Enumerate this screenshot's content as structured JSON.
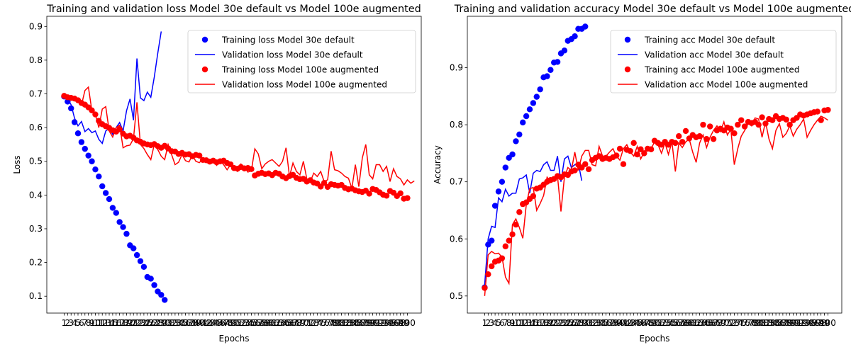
{
  "chart_data": [
    {
      "type": "line",
      "title": "Training and validation loss Model 30e default vs Model 100e augmented",
      "xlabel": "Epochs",
      "ylabel": "Loss",
      "xlim": [
        -4,
        104
      ],
      "ylim": [
        0.05,
        0.93
      ],
      "yticks": [
        0.1,
        0.2,
        0.3,
        0.4,
        0.5,
        0.6,
        0.7,
        0.8,
        0.9
      ],
      "xticks_max": 100,
      "legend_position": "top-right",
      "grid": false,
      "series": [
        {
          "name": "Training loss Model 30e default",
          "style": "markers",
          "color": "#0000ff",
          "values": [
            0.692,
            0.677,
            0.657,
            0.616,
            0.583,
            0.557,
            0.537,
            0.517,
            0.5,
            0.476,
            0.455,
            0.426,
            0.406,
            0.388,
            0.362,
            0.347,
            0.32,
            0.305,
            0.285,
            0.251,
            0.242,
            0.222,
            0.204,
            0.187,
            0.157,
            0.152,
            0.133,
            0.114,
            0.104,
            0.089
          ]
        },
        {
          "name": "Validation loss Model 30e default",
          "style": "line",
          "color": "#0000ff",
          "values": [
            0.69,
            0.685,
            0.668,
            0.628,
            0.605,
            0.618,
            0.588,
            0.597,
            0.585,
            0.59,
            0.565,
            0.553,
            0.59,
            0.598,
            0.58,
            0.6,
            0.615,
            0.59,
            0.65,
            0.685,
            0.622,
            0.805,
            0.688,
            0.68,
            0.705,
            0.69,
            0.75,
            0.82,
            0.885
          ]
        },
        {
          "name": "Training loss Model 100e augmented",
          "style": "markers",
          "color": "#ff0000",
          "values": [
            0.694,
            0.69,
            0.688,
            0.686,
            0.681,
            0.673,
            0.668,
            0.66,
            0.651,
            0.639,
            0.62,
            0.61,
            0.604,
            0.599,
            0.592,
            0.588,
            0.595,
            0.582,
            0.574,
            0.576,
            0.57,
            0.562,
            0.558,
            0.553,
            0.55,
            0.548,
            0.551,
            0.545,
            0.54,
            0.546,
            0.538,
            0.53,
            0.529,
            0.522,
            0.525,
            0.52,
            0.521,
            0.515,
            0.519,
            0.517,
            0.504,
            0.503,
            0.499,
            0.502,
            0.497,
            0.5,
            0.502,
            0.495,
            0.491,
            0.48,
            0.478,
            0.483,
            0.479,
            0.48,
            0.477,
            0.458,
            0.463,
            0.466,
            0.462,
            0.464,
            0.459,
            0.466,
            0.463,
            0.455,
            0.45,
            0.456,
            0.46,
            0.451,
            0.447,
            0.448,
            0.44,
            0.444,
            0.437,
            0.434,
            0.425,
            0.436,
            0.424,
            0.432,
            0.43,
            0.428,
            0.43,
            0.421,
            0.417,
            0.419,
            0.414,
            0.411,
            0.409,
            0.413,
            0.404,
            0.418,
            0.415,
            0.408,
            0.401,
            0.398,
            0.412,
            0.407,
            0.397,
            0.405,
            0.389,
            0.391
          ]
        },
        {
          "name": "Validation loss Model 100e augmented",
          "style": "line",
          "color": "#ff0000",
          "values": [
            0.69,
            0.691,
            0.686,
            0.683,
            0.681,
            0.667,
            0.71,
            0.72,
            0.65,
            0.64,
            0.6,
            0.655,
            0.662,
            0.59,
            0.572,
            0.6,
            0.607,
            0.54,
            0.546,
            0.548,
            0.567,
            0.675,
            0.55,
            0.538,
            0.52,
            0.505,
            0.55,
            0.535,
            0.515,
            0.505,
            0.55,
            0.52,
            0.49,
            0.497,
            0.52,
            0.502,
            0.498,
            0.518,
            0.5,
            0.496,
            0.507,
            0.51,
            0.495,
            0.5,
            0.488,
            0.502,
            0.49,
            0.475,
            0.49,
            0.48,
            0.47,
            0.492,
            0.482,
            0.468,
            0.472,
            0.537,
            0.522,
            0.478,
            0.492,
            0.5,
            0.505,
            0.495,
            0.485,
            0.5,
            0.54,
            0.455,
            0.495,
            0.47,
            0.46,
            0.5,
            0.448,
            0.44,
            0.465,
            0.455,
            0.47,
            0.44,
            0.445,
            0.53,
            0.475,
            0.472,
            0.465,
            0.455,
            0.45,
            0.42,
            0.49,
            0.425,
            0.51,
            0.55,
            0.46,
            0.448,
            0.49,
            0.49,
            0.47,
            0.485,
            0.44,
            0.478,
            0.455,
            0.448,
            0.43,
            0.445,
            0.435,
            0.442
          ]
        }
      ]
    },
    {
      "type": "line",
      "title": "Training and validation accuracy Model 30e default vs Model 100e augmented",
      "xlabel": "Epochs",
      "ylabel": "Accuracy",
      "xlim": [
        -4,
        104
      ],
      "ylim": [
        0.47,
        0.99
      ],
      "yticks": [
        0.5,
        0.6,
        0.7,
        0.8,
        0.9
      ],
      "xticks_max": 100,
      "legend_position": "top-right",
      "grid": false,
      "series": [
        {
          "name": "Training acc Model 30e default",
          "style": "markers",
          "color": "#0000ff",
          "values": [
            0.515,
            0.59,
            0.597,
            0.658,
            0.683,
            0.7,
            0.725,
            0.742,
            0.748,
            0.771,
            0.783,
            0.804,
            0.815,
            0.827,
            0.838,
            0.849,
            0.862,
            0.883,
            0.885,
            0.896,
            0.909,
            0.91,
            0.925,
            0.93,
            0.947,
            0.95,
            0.955,
            0.968,
            0.968,
            0.972
          ]
        },
        {
          "name": "Validation acc Model 30e default",
          "style": "line",
          "color": "#0000ff",
          "values": [
            0.52,
            0.6,
            0.622,
            0.62,
            0.672,
            0.665,
            0.687,
            0.675,
            0.68,
            0.68,
            0.705,
            0.707,
            0.712,
            0.68,
            0.715,
            0.72,
            0.718,
            0.73,
            0.735,
            0.72,
            0.72,
            0.745,
            0.7,
            0.74,
            0.745,
            0.725,
            0.73,
            0.733,
            0.702
          ]
        },
        {
          "name": "Training acc Model 100e augmented",
          "style": "markers",
          "color": "#ff0000",
          "values": [
            0.514,
            0.538,
            0.552,
            0.56,
            0.562,
            0.566,
            0.587,
            0.597,
            0.608,
            0.625,
            0.647,
            0.661,
            0.664,
            0.67,
            0.675,
            0.688,
            0.69,
            0.695,
            0.7,
            0.703,
            0.705,
            0.71,
            0.708,
            0.713,
            0.712,
            0.718,
            0.72,
            0.73,
            0.725,
            0.731,
            0.722,
            0.738,
            0.742,
            0.745,
            0.74,
            0.742,
            0.74,
            0.743,
            0.746,
            0.758,
            0.731,
            0.756,
            0.754,
            0.768,
            0.748,
            0.757,
            0.75,
            0.758,
            0.757,
            0.772,
            0.768,
            0.765,
            0.77,
            0.765,
            0.77,
            0.768,
            0.78,
            0.77,
            0.789,
            0.776,
            0.782,
            0.778,
            0.78,
            0.8,
            0.775,
            0.797,
            0.775,
            0.79,
            0.793,
            0.79,
            0.795,
            0.793,
            0.785,
            0.8,
            0.808,
            0.797,
            0.805,
            0.803,
            0.805,
            0.8,
            0.813,
            0.802,
            0.81,
            0.808,
            0.815,
            0.81,
            0.812,
            0.809,
            0.8,
            0.808,
            0.812,
            0.818,
            0.816,
            0.818,
            0.82,
            0.822,
            0.823,
            0.808,
            0.825,
            0.826
          ]
        },
        {
          "name": "Validation acc Model 100e augmented",
          "style": "line",
          "color": "#ff0000",
          "values": [
            0.5,
            0.572,
            0.578,
            0.574,
            0.575,
            0.568,
            0.533,
            0.522,
            0.625,
            0.635,
            0.62,
            0.601,
            0.66,
            0.688,
            0.69,
            0.65,
            0.662,
            0.676,
            0.708,
            0.7,
            0.702,
            0.71,
            0.648,
            0.708,
            0.725,
            0.72,
            0.752,
            0.72,
            0.745,
            0.755,
            0.755,
            0.73,
            0.728,
            0.762,
            0.745,
            0.745,
            0.752,
            0.758,
            0.745,
            0.738,
            0.758,
            0.765,
            0.752,
            0.745,
            0.762,
            0.74,
            0.752,
            0.76,
            0.758,
            0.77,
            0.765,
            0.75,
            0.768,
            0.748,
            0.77,
            0.718,
            0.768,
            0.76,
            0.77,
            0.775,
            0.752,
            0.734,
            0.768,
            0.782,
            0.76,
            0.778,
            0.79,
            0.798,
            0.788,
            0.805,
            0.782,
            0.792,
            0.73,
            0.758,
            0.78,
            0.79,
            0.802,
            0.798,
            0.812,
            0.81,
            0.778,
            0.805,
            0.775,
            0.758,
            0.79,
            0.802,
            0.778,
            0.785,
            0.798,
            0.78,
            0.792,
            0.8,
            0.81,
            0.778,
            0.79,
            0.8,
            0.808,
            0.815,
            0.812,
            0.808
          ]
        }
      ]
    }
  ]
}
